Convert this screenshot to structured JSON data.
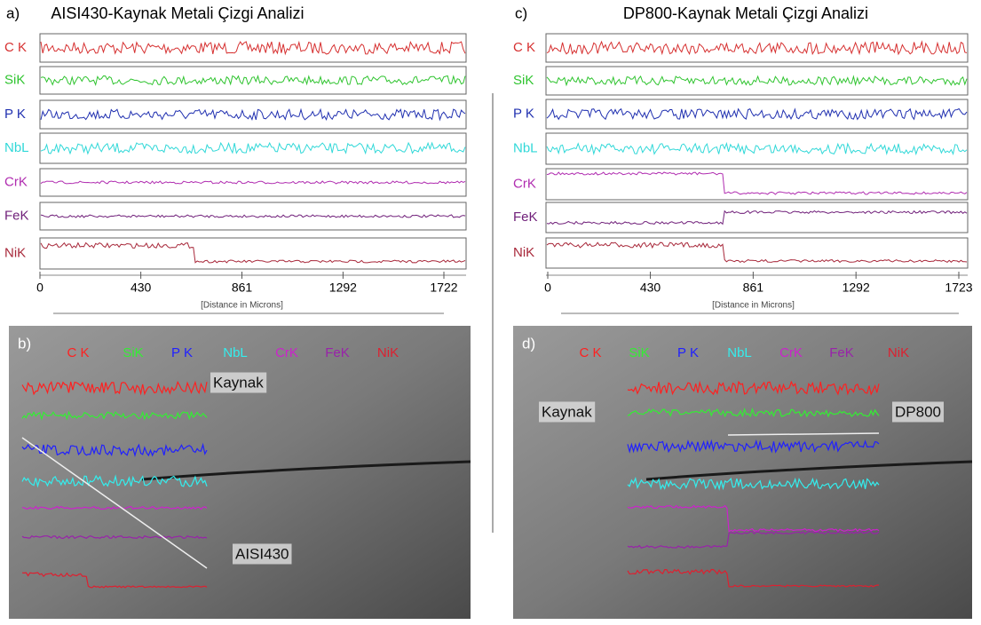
{
  "panels": [
    {
      "label": "a)",
      "title": "AISI430-Kaynak Metali Çizgi Analizi",
      "elements": [
        {
          "name": "C K",
          "color": "#d63030"
        },
        {
          "name": "SiK",
          "color": "#2fc42f"
        },
        {
          "name": "P K",
          "color": "#2030b0"
        },
        {
          "name": "NbL",
          "color": "#30d8d8"
        },
        {
          "name": "CrK",
          "color": "#b02cb0"
        },
        {
          "name": "FeK",
          "color": "#70207a"
        },
        {
          "name": "NiK",
          "color": "#a8283a"
        }
      ],
      "xlim": [
        0,
        1722
      ],
      "xticks": [
        0,
        430,
        861,
        1292,
        1722
      ],
      "xlabel": "[Distance in Microns]"
    },
    {
      "label": "c)",
      "title": "DP800-Kaynak Metali Çizgi Analizi",
      "elements": [
        {
          "name": "C K",
          "color": "#d63030"
        },
        {
          "name": "SiK",
          "color": "#2fc42f"
        },
        {
          "name": "P K",
          "color": "#2030b0"
        },
        {
          "name": "NbL",
          "color": "#30d8d8"
        },
        {
          "name": "CrK",
          "color": "#b02cb0"
        },
        {
          "name": "FeK",
          "color": "#70207a"
        },
        {
          "name": "NiK",
          "color": "#a8283a"
        }
      ],
      "xlim": [
        0,
        1723
      ],
      "xticks": [
        0,
        430,
        861,
        1292,
        1723
      ],
      "xlabel": "[Distance in Microns]"
    }
  ],
  "images": [
    {
      "label": "b)",
      "legend": [
        {
          "name": "C K",
          "color": "#ff2020"
        },
        {
          "name": "SiK",
          "color": "#33ee33"
        },
        {
          "name": "P K",
          "color": "#2020ff"
        },
        {
          "name": "NbL",
          "color": "#33eeee"
        },
        {
          "name": "CrK",
          "color": "#cc22cc"
        },
        {
          "name": "FeK",
          "color": "#9922aa"
        },
        {
          "name": "NiK",
          "color": "#dd2030"
        }
      ],
      "annotations": [
        "Kaynak",
        "AISI430"
      ]
    },
    {
      "label": "d)",
      "legend": [
        {
          "name": "C K",
          "color": "#ff2020"
        },
        {
          "name": "SiK",
          "color": "#33ee33"
        },
        {
          "name": "P K",
          "color": "#2020ff"
        },
        {
          "name": "NbL",
          "color": "#33eeee"
        },
        {
          "name": "CrK",
          "color": "#cc22cc"
        },
        {
          "name": "FeK",
          "color": "#9922aa"
        },
        {
          "name": "NiK",
          "color": "#dd2030"
        }
      ],
      "annotations": [
        "Kaynak",
        "DP800"
      ]
    }
  ]
}
